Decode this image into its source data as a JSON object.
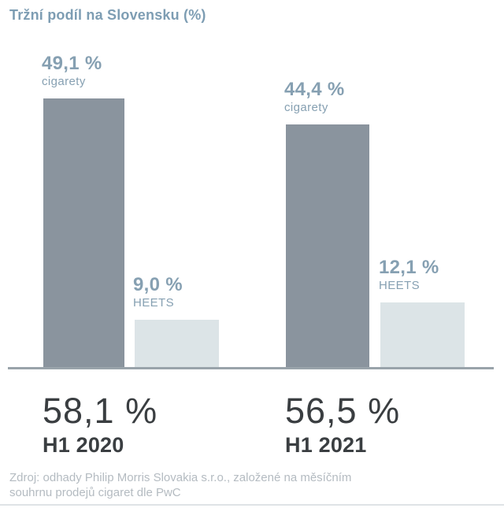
{
  "title": "Tržní podíl na Slovensku (%)",
  "source": {
    "line1": "Zdroj: odhady Philip Morris Slovakia s.r.o., založené na měsíčním",
    "line2": "souhrnu prodejů cigaret dle PwC"
  },
  "colors": {
    "cigarettes_bar": "#8a949e",
    "heets_bar": "#dce4e7",
    "accent_text": "#86a0b2",
    "title_text": "#7d9db3",
    "dark_text": "#3a3e41",
    "source_text": "#b4bbc1",
    "baseline": "#99a3aa"
  },
  "groups": [
    {
      "period": "H1 2020",
      "total_label": "58,1 %",
      "bars": [
        {
          "series": "cigarety",
          "label": "49,1 %",
          "value": 49.1
        },
        {
          "series": "HEETS",
          "label": "9,0 %",
          "value": 9.0
        }
      ]
    },
    {
      "period": "H1 2021",
      "total_label": "56,5 %",
      "bars": [
        {
          "series": "cigarety",
          "label": "44,4 %",
          "value": 44.4
        },
        {
          "series": "HEETS",
          "label": "12,1 %",
          "value": 12.1
        }
      ]
    }
  ],
  "chart_data": {
    "type": "bar",
    "title": "Tržní podíl na Slovensku (%)",
    "categories": [
      "H1 2020",
      "H1 2021"
    ],
    "series": [
      {
        "name": "cigarety",
        "values": [
          49.1,
          44.4
        ]
      },
      {
        "name": "HEETS",
        "values": [
          9.0,
          12.1
        ]
      }
    ],
    "totals": [
      58.1,
      56.5
    ],
    "unit": "%",
    "ylim": [
      0,
      50
    ],
    "grid": false,
    "legend_position": "value labels above each bar",
    "source": "Zdroj: odhady Philip Morris Slovakia s.r.o., založené na měsíčním souhrnu prodejů cigaret dle PwC"
  }
}
